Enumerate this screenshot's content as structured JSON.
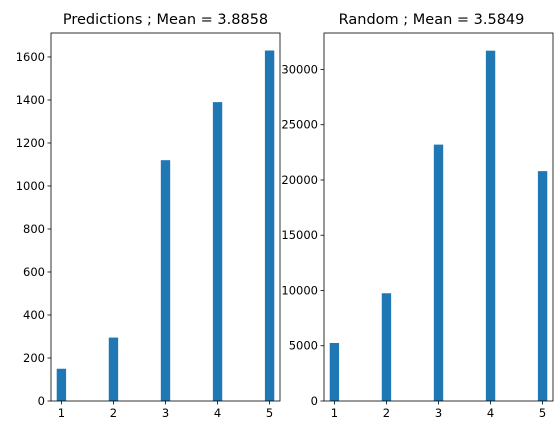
{
  "chart_data": [
    {
      "type": "bar",
      "title": "Predictions ; Mean = 3.8858",
      "xlabel": "",
      "ylabel": "",
      "x": [
        1,
        2,
        3,
        4,
        5
      ],
      "values": [
        150,
        295,
        1120,
        1390,
        1630
      ],
      "xlim": [
        0.8,
        5.2
      ],
      "ylim": [
        0,
        1711.5
      ],
      "xticks": [
        "1",
        "2",
        "3",
        "4",
        "5"
      ],
      "yticks": [
        "0",
        "200",
        "400",
        "600",
        "800",
        "1000",
        "1200",
        "1400",
        "1600"
      ],
      "grid": false,
      "color": "#1f77b4"
    },
    {
      "type": "bar",
      "title": "Random ; Mean = 3.5849",
      "xlabel": "",
      "ylabel": "",
      "x": [
        1,
        2,
        3,
        4,
        5
      ],
      "values": [
        5250,
        9750,
        23200,
        31700,
        20800
      ],
      "xlim": [
        0.8,
        5.2
      ],
      "ylim": [
        0,
        33300
      ],
      "xticks": [
        "1",
        "2",
        "3",
        "4",
        "5"
      ],
      "yticks": [
        "0",
        "5000",
        "10000",
        "15000",
        "20000",
        "25000",
        "30000"
      ],
      "grid": false,
      "color": "#1f77b4"
    }
  ]
}
